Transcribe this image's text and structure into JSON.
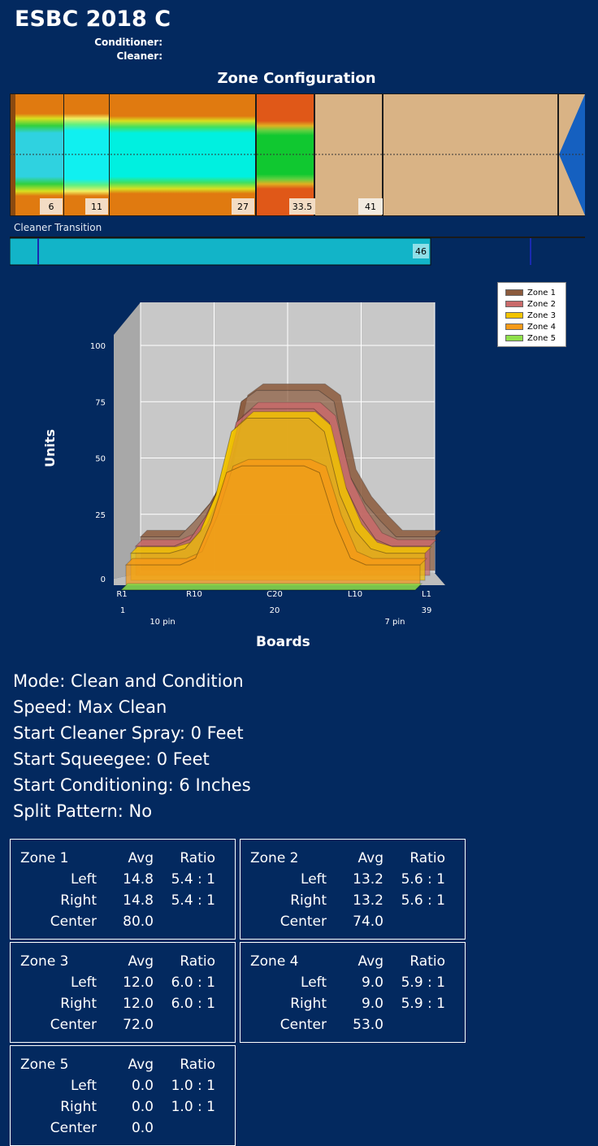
{
  "header": {
    "title": "ESBC 2018 C",
    "conditioner_label": "Conditioner:",
    "cleaner_label": "Cleaner:"
  },
  "zone_configuration": {
    "title": "Zone Configuration",
    "markers": [
      "6",
      "11",
      "27",
      "33.5",
      "41"
    ]
  },
  "cleaner_transition": {
    "label": "Cleaner Transition",
    "value": "46"
  },
  "chart_data": {
    "type": "area",
    "title": "",
    "xlabel": "Boards",
    "ylabel": "Units",
    "ylim": [
      0,
      100
    ],
    "y_ticks": [
      "0",
      "25",
      "50",
      "75",
      "100"
    ],
    "x_tick_labels": [
      "R1",
      "R10",
      "C20",
      "L10",
      "L1"
    ],
    "x_tick_numbers": [
      "1",
      "20",
      "39"
    ],
    "arrow_labels": [
      "10 pin",
      "7 pin"
    ],
    "legend_position": "top-right",
    "x": [
      1,
      4,
      6,
      8,
      10,
      12,
      14,
      16,
      20,
      24,
      26,
      28,
      30,
      32,
      34,
      36,
      39
    ],
    "series": [
      {
        "name": "Zone 1",
        "color": "#8b5a3c",
        "values": [
          15,
          15,
          15,
          22,
          30,
          42,
          75,
          80,
          80,
          80,
          75,
          42,
          30,
          22,
          15,
          15,
          15
        ]
      },
      {
        "name": "Zone 2",
        "color": "#c96a6a",
        "values": [
          13,
          13,
          13,
          16,
          26,
          40,
          68,
          74,
          74,
          74,
          68,
          40,
          26,
          16,
          13,
          13,
          13
        ]
      },
      {
        "name": "Zone 3",
        "color": "#f2c400",
        "values": [
          12,
          12,
          12,
          14,
          22,
          38,
          66,
          72,
          72,
          72,
          66,
          38,
          22,
          14,
          12,
          12,
          12
        ]
      },
      {
        "name": "Zone 4",
        "color": "#f59a18",
        "values": [
          9,
          9,
          9,
          9,
          12,
          28,
          50,
          53,
          53,
          53,
          50,
          28,
          12,
          9,
          9,
          9,
          9
        ]
      },
      {
        "name": "Zone 5",
        "color": "#8fe04a",
        "values": [
          0,
          0,
          0,
          0,
          0,
          0,
          0,
          0,
          0,
          0,
          0,
          0,
          0,
          0,
          0,
          0,
          0
        ]
      }
    ]
  },
  "settings": [
    "Mode: Clean and Condition",
    "Speed: Max Clean",
    "Start Cleaner Spray: 0 Feet",
    "Start Squeegee: 0 Feet",
    "Start Conditioning: 6 Inches",
    "Split Pattern: No"
  ],
  "zones": [
    {
      "name": "Zone 1",
      "avg_label": "Avg",
      "ratio_label": "Ratio",
      "left_label": "Left",
      "left_avg": "14.8",
      "left_ratio": "5.4 : 1",
      "right_label": "Right",
      "right_avg": "14.8",
      "right_ratio": "5.4 : 1",
      "center_label": "Center",
      "center_avg": "80.0"
    },
    {
      "name": "Zone 2",
      "avg_label": "Avg",
      "ratio_label": "Ratio",
      "left_label": "Left",
      "left_avg": "13.2",
      "left_ratio": "5.6 : 1",
      "right_label": "Right",
      "right_avg": "13.2",
      "right_ratio": "5.6 : 1",
      "center_label": "Center",
      "center_avg": "74.0"
    },
    {
      "name": "Zone 3",
      "avg_label": "Avg",
      "ratio_label": "Ratio",
      "left_label": "Left",
      "left_avg": "12.0",
      "left_ratio": "6.0 : 1",
      "right_label": "Right",
      "right_avg": "12.0",
      "right_ratio": "6.0 : 1",
      "center_label": "Center",
      "center_avg": "72.0"
    },
    {
      "name": "Zone 4",
      "avg_label": "Avg",
      "ratio_label": "Ratio",
      "left_label": "Left",
      "left_avg": "9.0",
      "left_ratio": "5.9 : 1",
      "right_label": "Right",
      "right_avg": "9.0",
      "right_ratio": "5.9 : 1",
      "center_label": "Center",
      "center_avg": "53.0"
    },
    {
      "name": "Zone 5",
      "avg_label": "Avg",
      "ratio_label": "Ratio",
      "left_label": "Left",
      "left_avg": "0.0",
      "left_ratio": "1.0 : 1",
      "right_label": "Right",
      "right_avg": "0.0",
      "right_ratio": "1.0 : 1",
      "center_label": "Center",
      "center_avg": "0.0"
    }
  ]
}
